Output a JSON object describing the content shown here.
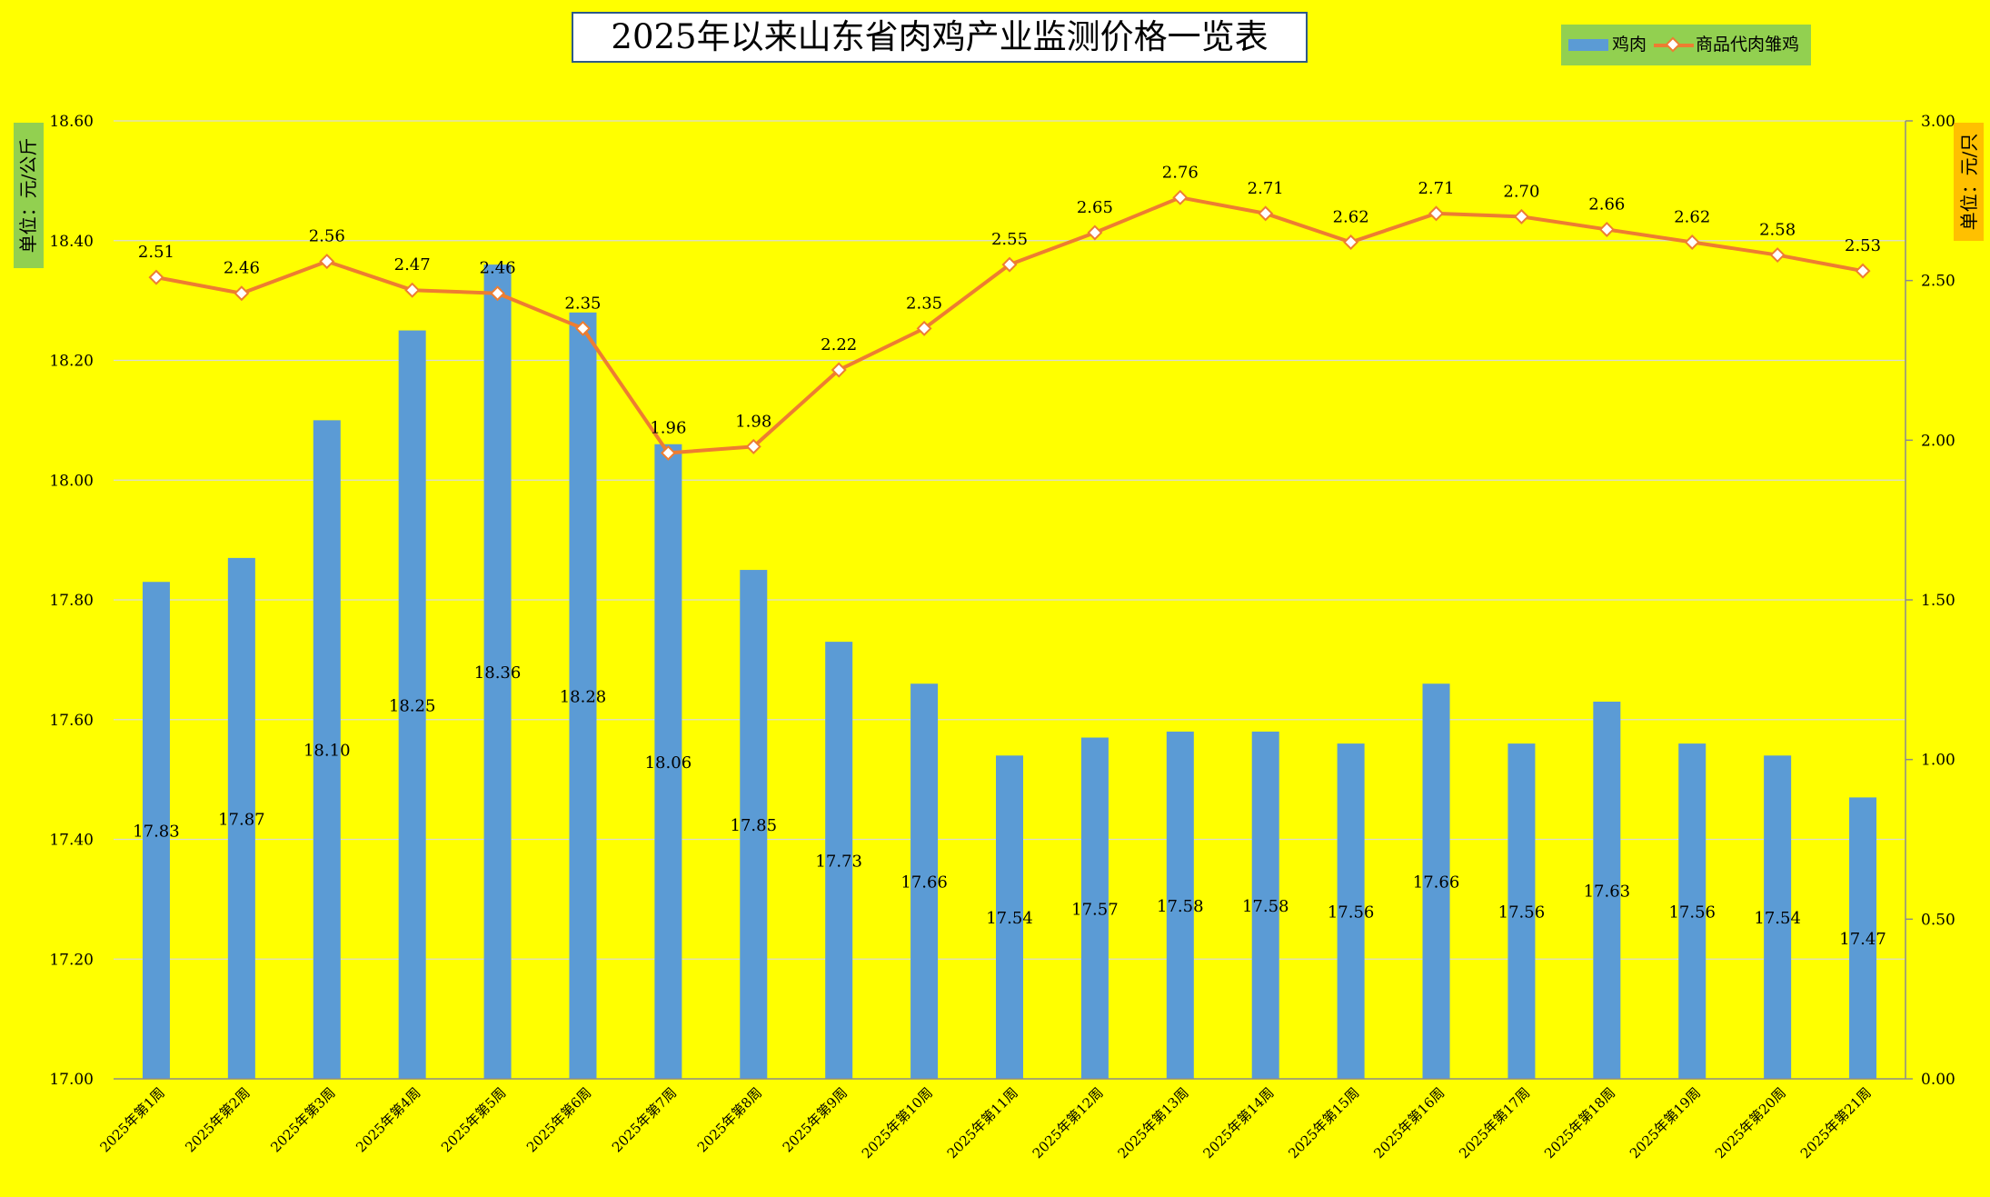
{
  "chart_data": {
    "title": "2025年以来山东省肉鸡产业监测价格一览表",
    "categories": [
      "2025年第1周",
      "2025年第2周",
      "2025年第3周",
      "2025年第4周",
      "2025年第5周",
      "2025年第6周",
      "2025年第7周",
      "2025年第8周",
      "2025年第9周",
      "2025年第10周",
      "2025年第11周",
      "2025年第12周",
      "2025年第13周",
      "2025年第14周",
      "2025年第15周",
      "2025年第16周",
      "2025年第17周",
      "2025年第18周",
      "2025年第19周",
      "2025年第20周",
      "2025年第21周"
    ],
    "series": [
      {
        "name": "鸡肉",
        "type": "bar",
        "axis": "left",
        "color": "#5b9bd5",
        "values": [
          17.83,
          17.87,
          18.1,
          18.25,
          18.36,
          18.28,
          18.06,
          17.85,
          17.73,
          17.66,
          17.54,
          17.57,
          17.58,
          17.58,
          17.56,
          17.66,
          17.56,
          17.63,
          17.56,
          17.54,
          17.47
        ]
      },
      {
        "name": "商品代肉雏鸡",
        "type": "line",
        "axis": "right",
        "color": "#ed7d31",
        "values": [
          2.51,
          2.46,
          2.56,
          2.47,
          2.46,
          2.35,
          1.96,
          1.98,
          2.22,
          2.35,
          2.55,
          2.65,
          2.76,
          2.71,
          2.62,
          2.71,
          2.7,
          2.66,
          2.62,
          2.58,
          2.53
        ]
      }
    ],
    "left_axis": {
      "label": "单位：元/公斤",
      "ylim": [
        17.0,
        18.6
      ],
      "ticks": [
        "17.00",
        "17.20",
        "17.40",
        "17.60",
        "17.80",
        "18.00",
        "18.20",
        "18.40",
        "18.60"
      ]
    },
    "right_axis": {
      "label": "单位：元/只",
      "ylim": [
        0.0,
        3.0
      ],
      "ticks": [
        "0.00",
        "0.50",
        "1.00",
        "1.50",
        "2.00",
        "2.50",
        "3.00"
      ]
    },
    "grid": true,
    "legend_position": "top-right",
    "colors": {
      "background": "#ffff00",
      "left_label_bg": "#92d050",
      "right_label_bg": "#ffc000",
      "legend_bg": "#92d050",
      "gridline": "#d9d9d9"
    }
  }
}
